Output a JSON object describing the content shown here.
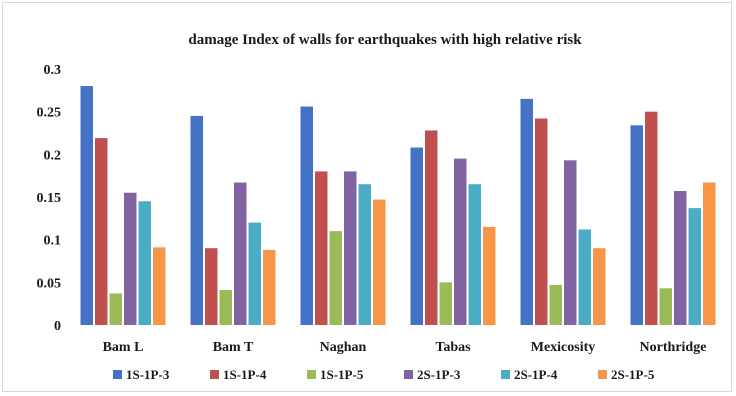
{
  "chart_data": {
    "type": "bar",
    "title": "damage Index of walls for earthquakes with high relative risk",
    "xlabel": "",
    "ylabel": "",
    "ylim": [
      0,
      0.3
    ],
    "yticks": [
      "0",
      "0.05",
      "0.1",
      "0.15",
      "0.2",
      "0.25",
      "0.3"
    ],
    "grid": false,
    "legend_position": "bottom",
    "categories": [
      "Bam L",
      "Bam T",
      "Naghan",
      "Tabas",
      "Mexicosity",
      "Northridge"
    ],
    "series": [
      {
        "name": "1S-1P-3",
        "color": "#4472C4",
        "values": [
          0.28,
          0.245,
          0.256,
          0.208,
          0.265,
          0.234
        ]
      },
      {
        "name": "1S-1P-4",
        "color": "#C0504D",
        "values": [
          0.219,
          0.09,
          0.18,
          0.228,
          0.242,
          0.25
        ]
      },
      {
        "name": "1S-1P-5",
        "color": "#9BBB59",
        "values": [
          0.037,
          0.041,
          0.11,
          0.05,
          0.047,
          0.043
        ]
      },
      {
        "name": "2S-1P-3",
        "color": "#8064A2",
        "values": [
          0.155,
          0.167,
          0.18,
          0.195,
          0.193,
          0.157
        ]
      },
      {
        "name": "2S-1P-4",
        "color": "#4BACC6",
        "values": [
          0.145,
          0.12,
          0.165,
          0.165,
          0.112,
          0.137
        ]
      },
      {
        "name": "2S-1P-5",
        "color": "#F79646",
        "values": [
          0.091,
          0.088,
          0.147,
          0.115,
          0.09,
          0.167
        ]
      }
    ]
  }
}
